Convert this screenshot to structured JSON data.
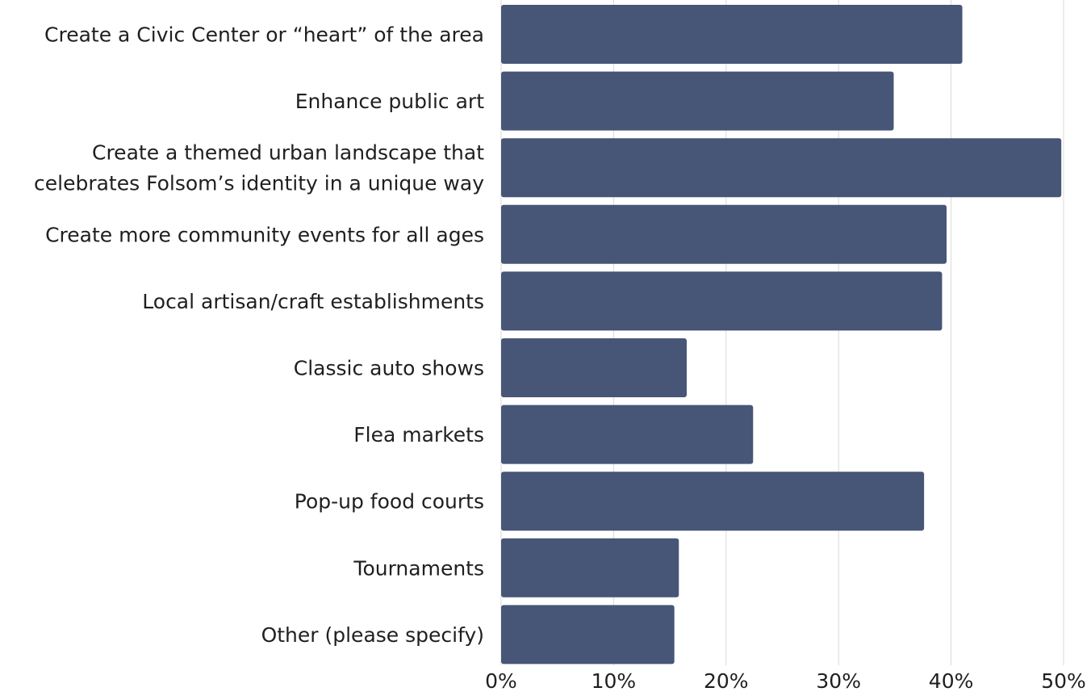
{
  "chart_data": {
    "type": "bar",
    "orientation": "horizontal",
    "title": "",
    "xlabel": "",
    "ylabel": "",
    "categories": [
      "Create a Civic Center or “heart” of the area",
      "Enhance public art",
      "Create a themed urban landscape that celebrates Folsom’s identity in a unique way",
      "Create more community events for all ages",
      "Local artisan/craft establishments",
      "Classic auto shows",
      "Flea markets",
      "Pop-up food courts",
      "Tournaments",
      "Other (please specify)"
    ],
    "values": [
      41.0,
      34.9,
      49.8,
      39.6,
      39.2,
      16.5,
      22.4,
      37.6,
      15.8,
      15.4
    ],
    "xlim": [
      0,
      50
    ],
    "x_ticks": [
      "0%",
      "10%",
      "20%",
      "30%",
      "40%",
      "50%"
    ],
    "grid": true,
    "legend": "none",
    "bar_color": "#475577"
  }
}
